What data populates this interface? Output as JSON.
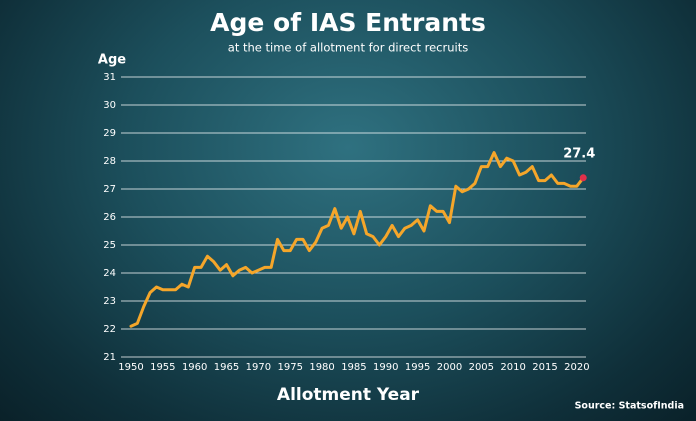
{
  "chart_data": {
    "type": "line",
    "title": "Age of IAS Entrants",
    "subtitle": "at the time of allotment for direct recruits",
    "y_label": "Age",
    "x_label": "Allotment Year",
    "source": "Source: StatsofIndia",
    "x": [
      1950,
      1951,
      1952,
      1953,
      1954,
      1955,
      1956,
      1957,
      1958,
      1959,
      1960,
      1961,
      1962,
      1963,
      1964,
      1965,
      1966,
      1967,
      1968,
      1969,
      1970,
      1971,
      1972,
      1973,
      1974,
      1975,
      1976,
      1977,
      1978,
      1979,
      1980,
      1981,
      1982,
      1983,
      1984,
      1985,
      1986,
      1987,
      1988,
      1989,
      1990,
      1991,
      1992,
      1993,
      1994,
      1995,
      1996,
      1997,
      1998,
      1999,
      2000,
      2001,
      2002,
      2003,
      2004,
      2005,
      2006,
      2007,
      2008,
      2009,
      2010,
      2011,
      2012,
      2013,
      2014,
      2015,
      2016,
      2017,
      2018,
      2019,
      2020,
      2021
    ],
    "values": [
      22.1,
      22.2,
      22.8,
      23.3,
      23.5,
      23.4,
      23.4,
      23.4,
      23.6,
      23.5,
      24.2,
      24.2,
      24.6,
      24.4,
      24.1,
      24.3,
      23.9,
      24.1,
      24.2,
      24.0,
      24.1,
      24.2,
      24.2,
      25.2,
      24.8,
      24.8,
      25.2,
      25.2,
      24.8,
      25.1,
      25.6,
      25.7,
      26.3,
      25.6,
      26.0,
      25.4,
      26.2,
      25.4,
      25.3,
      25.0,
      25.3,
      25.7,
      25.3,
      25.6,
      25.7,
      25.9,
      25.5,
      26.4,
      26.2,
      26.2,
      25.8,
      27.1,
      26.9,
      27.0,
      27.2,
      27.8,
      27.8,
      28.3,
      27.8,
      28.1,
      28.0,
      27.5,
      27.6,
      27.8,
      27.3,
      27.3,
      27.5,
      27.2,
      27.2,
      27.1,
      27.1,
      27.4
    ],
    "color": "#f5a62a",
    "highlight_color": "#e0304a",
    "xlim": [
      1949,
      2022
    ],
    "xticks": [
      1950,
      1955,
      1960,
      1965,
      1970,
      1975,
      1980,
      1985,
      1990,
      1995,
      2000,
      2005,
      2010,
      2015,
      2020
    ],
    "ylim": [
      21,
      31
    ],
    "yticks": [
      21,
      22,
      23,
      24,
      25,
      26,
      27,
      28,
      29,
      30,
      31
    ],
    "grid": true
  }
}
